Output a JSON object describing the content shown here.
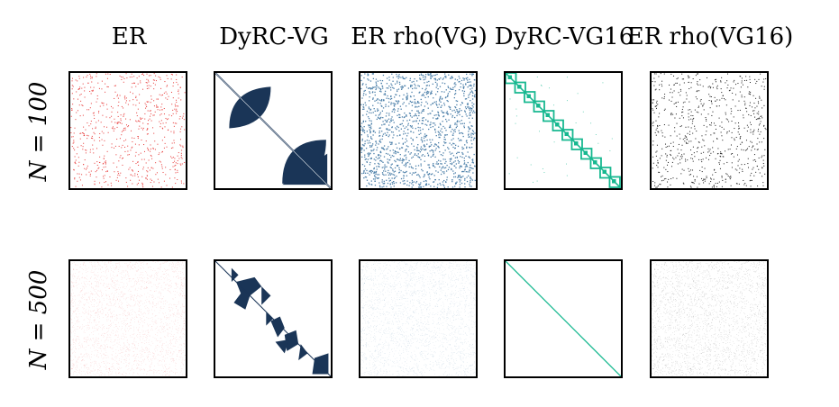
{
  "chart_data": {
    "type": "heatmap",
    "description_kind": "adjacency matrix sparsity patterns (spy plots)",
    "columns": [
      {
        "title": "ER",
        "color": "#e8403f"
      },
      {
        "title": "DyRC-VG",
        "color": "#1a3557"
      },
      {
        "title": "ER rho(VG)",
        "color": "#4a7ea8"
      },
      {
        "title": "DyRC-VG16",
        "color": "#17b890"
      },
      {
        "title": "ER rho(VG16)",
        "color": "#222222"
      }
    ],
    "rows": [
      {
        "label": "N = 100",
        "N": 100
      },
      {
        "label": "N = 500",
        "N": 500
      }
    ]
  }
}
